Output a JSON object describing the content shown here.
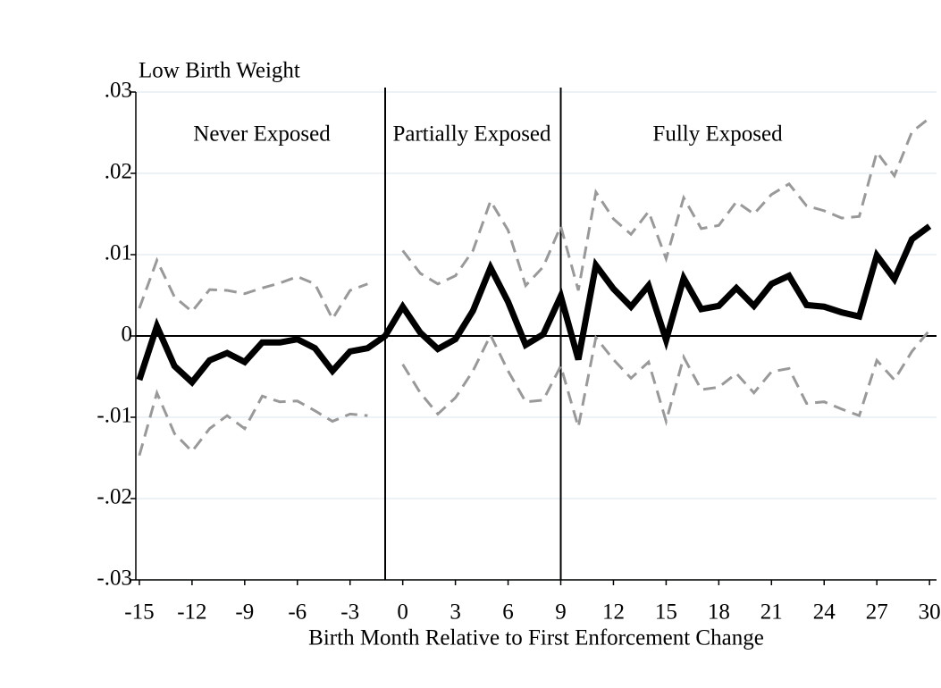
{
  "chart_data": {
    "type": "line",
    "y_label": "Low Birth Weight",
    "x_label": "Birth Month Relative to First Enforcement Change",
    "annotations": [
      "Never Exposed",
      "Partially Exposed",
      "Fully Exposed"
    ],
    "x": [
      -15,
      -14,
      -13,
      -12,
      -11,
      -10,
      -9,
      -8,
      -7,
      -6,
      -5,
      -4,
      -3,
      -2,
      -1,
      0,
      1,
      2,
      3,
      4,
      5,
      6,
      7,
      8,
      9,
      10,
      11,
      12,
      13,
      14,
      15,
      16,
      17,
      18,
      19,
      20,
      21,
      22,
      23,
      24,
      25,
      26,
      27,
      28,
      29,
      30
    ],
    "series": [
      {
        "color": "#000000",
        "style": "solid",
        "values": [
          -0.0054,
          0.0012,
          -0.0037,
          -0.0057,
          -0.003,
          -0.0021,
          -0.0032,
          -0.0008,
          -0.0008,
          -0.0004,
          -0.0015,
          -0.0043,
          -0.0019,
          -0.0015,
          0,
          0.0036,
          0.0004,
          -0.0016,
          -0.0004,
          0.0031,
          0.0084,
          0.0042,
          -0.0011,
          0.0002,
          0.0049,
          -0.0029,
          0.0087,
          0.0058,
          0.0036,
          0.0062,
          -0.0005,
          0.0071,
          0.0033,
          0.0037,
          0.0059,
          0.0037,
          0.0064,
          0.0074,
          0.0038,
          0.0036,
          0.0029,
          0.0024,
          0.0099,
          0.007,
          0.0119,
          0.0135
        ]
      },
      {
        "color": "#999999",
        "style": "dashed",
        "values": [
          0.0034,
          0.0093,
          0.0048,
          0.003,
          0.0057,
          0.0056,
          0.0052,
          0.0059,
          0.0065,
          0.0073,
          0.0064,
          0.0021,
          0.0056,
          0.0064,
          null,
          0.0105,
          0.0077,
          0.0064,
          0.0074,
          0.0105,
          0.0166,
          0.013,
          0.0062,
          0.0085,
          0.0135,
          0.0056,
          0.0177,
          0.0144,
          0.0125,
          0.0153,
          0.0095,
          0.017,
          0.0132,
          0.0136,
          0.0165,
          0.015,
          0.0174,
          0.0187,
          0.016,
          0.0154,
          0.0145,
          0.0147,
          0.0226,
          0.0197,
          0.0251,
          0.0268
        ]
      },
      {
        "color": "#999999",
        "style": "dashed",
        "values": [
          -0.0147,
          -0.007,
          -0.012,
          -0.0142,
          -0.0114,
          -0.0098,
          -0.0114,
          -0.0074,
          -0.0081,
          -0.008,
          -0.0092,
          -0.0105,
          -0.0096,
          -0.0098,
          null,
          -0.0035,
          -0.007,
          -0.0096,
          -0.0076,
          -0.0043,
          0.0001,
          -0.0043,
          -0.0081,
          -0.0079,
          -0.0037,
          -0.0112,
          -0.0002,
          -0.0029,
          -0.0052,
          -0.0032,
          -0.0105,
          -0.0026,
          -0.0066,
          -0.0063,
          -0.0046,
          -0.007,
          -0.0044,
          -0.004,
          -0.0083,
          -0.0081,
          -0.009,
          -0.0098,
          -0.003,
          -0.0054,
          -0.0019,
          0.0007
        ]
      }
    ],
    "reference_lines": {
      "x": [
        -1,
        9
      ],
      "y": [
        0
      ]
    },
    "xlim": [
      -15.2,
      30.4
    ],
    "ylim": [
      -0.03,
      0.03
    ],
    "xticks": [
      -15,
      -12,
      -9,
      -6,
      -3,
      0,
      3,
      6,
      9,
      12,
      15,
      18,
      21,
      24,
      27,
      30
    ],
    "yticks": [
      {
        "value": 0.03,
        "label": ".03"
      },
      {
        "value": 0.02,
        "label": ".02"
      },
      {
        "value": 0.01,
        "label": ".01"
      },
      0,
      {
        "value": -0.01,
        "label": "-.01"
      },
      {
        "value": -0.02,
        "label": "-.02"
      },
      {
        "value": -0.03,
        "label": "-.03"
      }
    ],
    "grid": true
  }
}
